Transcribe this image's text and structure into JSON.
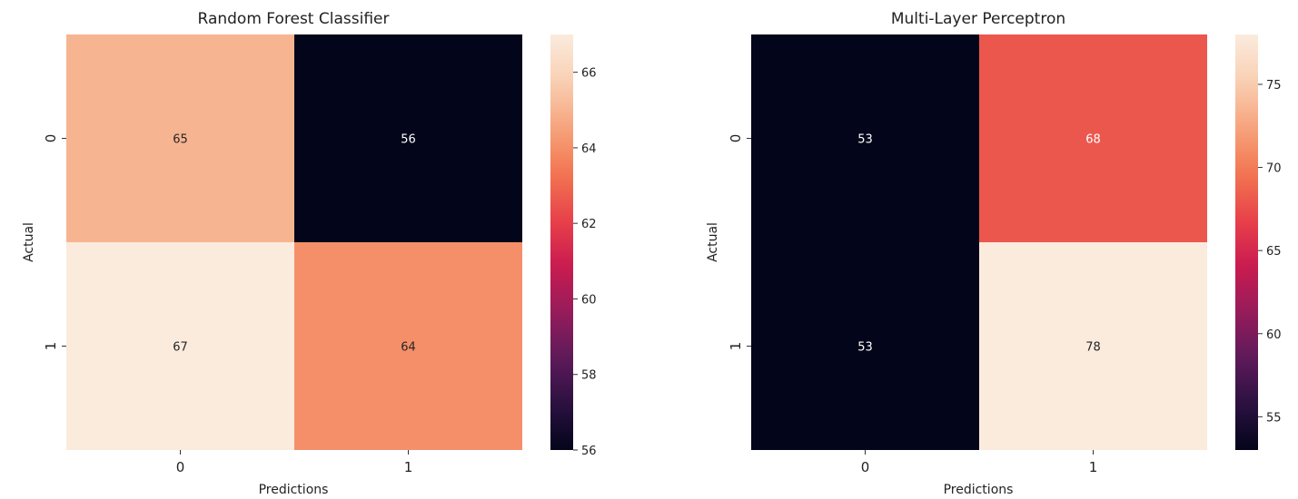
{
  "chart_data": [
    {
      "type": "heatmap",
      "title": "Random Forest Classifier",
      "xlabel": "Predictions",
      "ylabel": "Actual",
      "x_categories": [
        "0",
        "1"
      ],
      "y_categories": [
        "0",
        "1"
      ],
      "values": [
        [
          65,
          56
        ],
        [
          67,
          64
        ]
      ],
      "colormap": "rocket",
      "colorbar": {
        "range": [
          56,
          67
        ],
        "ticks": [
          56,
          58,
          60,
          62,
          64,
          66
        ]
      }
    },
    {
      "type": "heatmap",
      "title": "Multi-Layer Perceptron",
      "xlabel": "Predictions",
      "ylabel": "Actual",
      "x_categories": [
        "0",
        "1"
      ],
      "y_categories": [
        "0",
        "1"
      ],
      "values": [
        [
          53,
          68
        ],
        [
          53,
          78
        ]
      ],
      "colormap": "rocket",
      "colorbar": {
        "range": [
          53,
          78
        ],
        "ticks": [
          55,
          60,
          65,
          70,
          75
        ]
      }
    }
  ],
  "colors": {
    "rocket_stops": [
      "#03051a",
      "#2b1141",
      "#5e1a5b",
      "#971c5b",
      "#cb1b4f",
      "#e8424a",
      "#f37651",
      "#f6a47d",
      "#f9d0b4",
      "#faebdd"
    ]
  }
}
